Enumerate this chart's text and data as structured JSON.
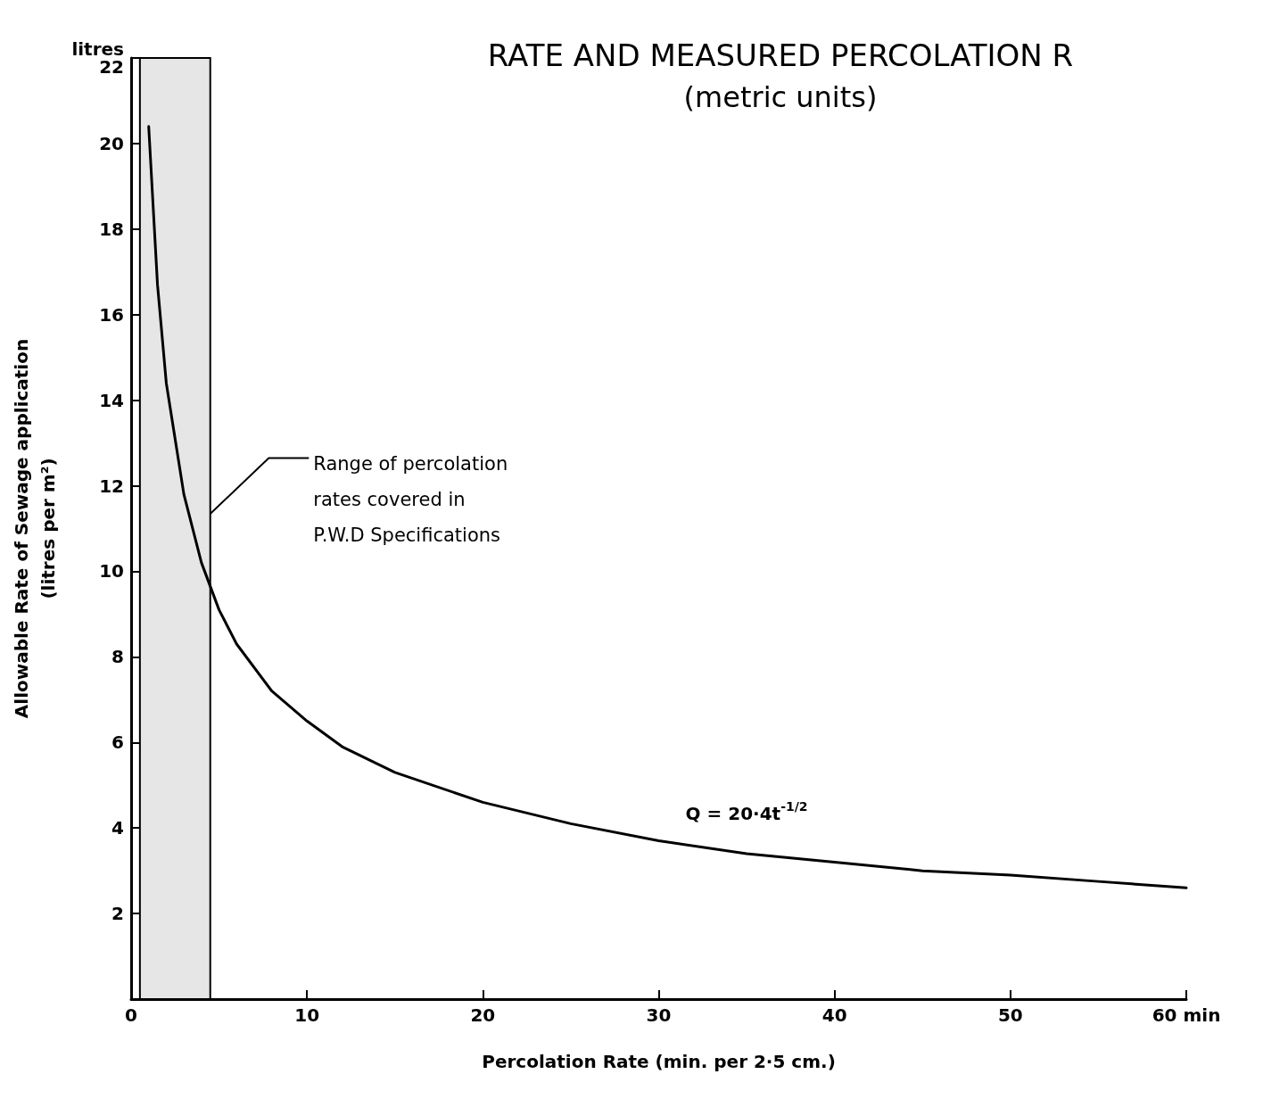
{
  "chart_data": {
    "type": "line",
    "title": "RATE AND MEASURED PERCOLATION R",
    "subtitle": "(metric units)",
    "xlabel": "Percolation Rate (min. per 2·5 cm.)",
    "ylabel": "Allowable Rate of Sewage application\n(litres per m²)",
    "series": [
      {
        "color": "#000000",
        "x": [
          1,
          1.5,
          2,
          3,
          4,
          5,
          6,
          8,
          10,
          12,
          15,
          20,
          25,
          30,
          35,
          40,
          45,
          50,
          55,
          60
        ],
        "values": [
          20.4,
          16.7,
          14.4,
          11.8,
          10.2,
          9.1,
          8.3,
          7.2,
          6.5,
          5.9,
          5.3,
          4.6,
          4.1,
          3.7,
          3.4,
          3.2,
          3.0,
          2.9,
          2.75,
          2.6
        ]
      }
    ],
    "xlim": [
      0,
      60
    ],
    "xticks": [
      0,
      10,
      20,
      30,
      40,
      50,
      {
        "value": 60,
        "label": "60 min"
      }
    ],
    "ylim": [
      0,
      22
    ],
    "yticks": [
      {
        "value": 0,
        "label": null
      },
      2,
      4,
      6,
      8,
      10,
      12,
      14,
      16,
      18,
      20,
      {
        "value": 22,
        "label": "litres\n22"
      }
    ],
    "bands": [
      {
        "axis": "x",
        "from": 0.5,
        "to": 4.5,
        "label": "Range of percolation\nrates covered in\nP.W.D Specifications",
        "color": "#e6e6e6"
      }
    ],
    "annotations": [
      {
        "text": "Q = 20·4t$^{-1/2}$",
        "x": 35,
        "y": 3.4
      }
    ],
    "grid": false,
    "marker": "none",
    "line_style": "solid"
  }
}
